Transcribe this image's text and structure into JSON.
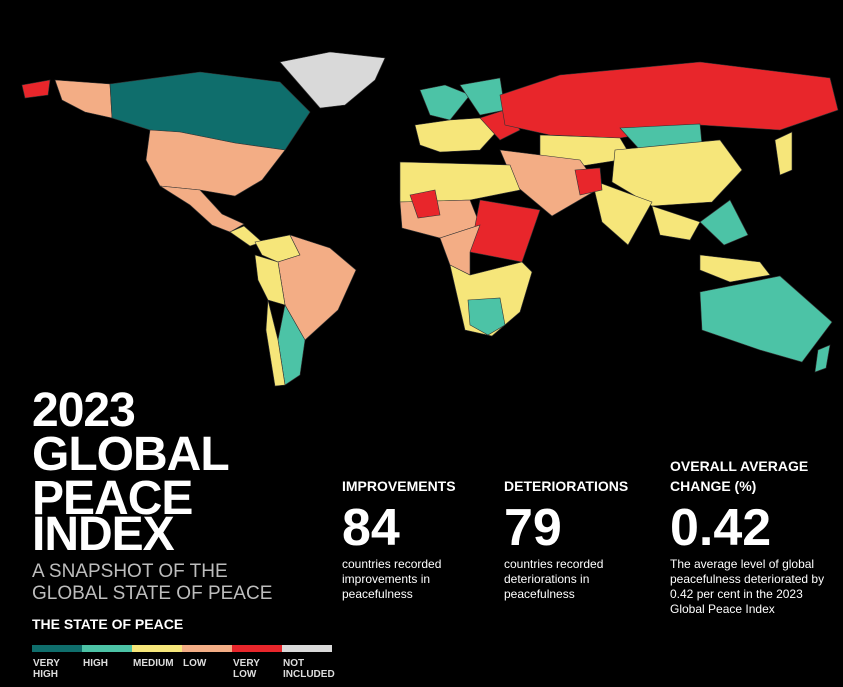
{
  "title": [
    "2023",
    "GLOBAL",
    "PEACE",
    "INDEX"
  ],
  "subtitle": [
    "A SNAPSHOT OF THE",
    "GLOBAL STATE OF PEACE"
  ],
  "legend": {
    "title": "THE STATE OF PEACE",
    "items": [
      {
        "label": [
          "VERY",
          "HIGH"
        ],
        "color": "#0f6e6c"
      },
      {
        "label": [
          "HIGH"
        ],
        "color": "#4cc3a6"
      },
      {
        "label": [
          "MEDIUM"
        ],
        "color": "#f6e67a"
      },
      {
        "label": [
          "LOW"
        ],
        "color": "#f3ad85"
      },
      {
        "label": [
          "VERY",
          "LOW"
        ],
        "color": "#e8262b"
      },
      {
        "label": [
          "NOT",
          "INCLUDED"
        ],
        "color": "#d9d9d9"
      }
    ]
  },
  "stats": [
    {
      "heading": [
        "IMPROVEMENTS"
      ],
      "value": "84",
      "description": [
        "countries recorded",
        "improvements in",
        "peacefulness"
      ]
    },
    {
      "heading": [
        "DETERIORATIONS"
      ],
      "value": "79",
      "description": [
        "countries recorded",
        "deteriorations in",
        "peacefulness"
      ]
    },
    {
      "heading": [
        "OVERALL AVERAGE",
        "CHANGE (%)"
      ],
      "value": "0.42",
      "description": [
        "The average level of global",
        "peacefulness deteriorated by",
        "0.42 per cent in the 2023",
        "Global Peace Index"
      ]
    }
  ]
}
